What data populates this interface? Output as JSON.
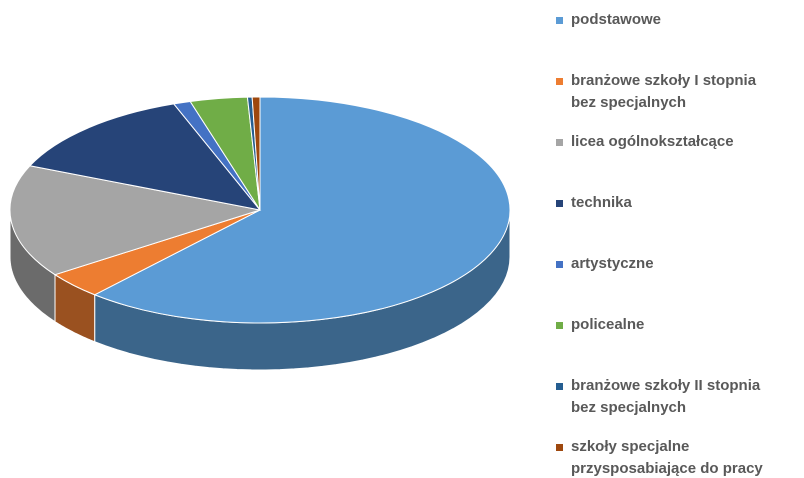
{
  "chart_data": {
    "type": "pie3d",
    "categories": [
      "podstawowe",
      "branżowe szkoły I stopnia\nbez specjalnych",
      "licea ogólnokształcące",
      "technika",
      "artystyczne",
      "policealne",
      "branżowe szkoły II stopnia\nbez specjalnych",
      "szkoły specjalne\nprzysposabiające do pracy"
    ],
    "values": [
      61.5,
      3.8,
      16.1,
      13,
      1.1,
      3.7,
      0.3,
      0.5
    ],
    "colors": [
      "#5b9bd5",
      "#ed7d31",
      "#a5a5a5",
      "#264478",
      "#4472c4",
      "#70ad47",
      "#255e91",
      "#9e480e"
    ],
    "legend": "right"
  }
}
